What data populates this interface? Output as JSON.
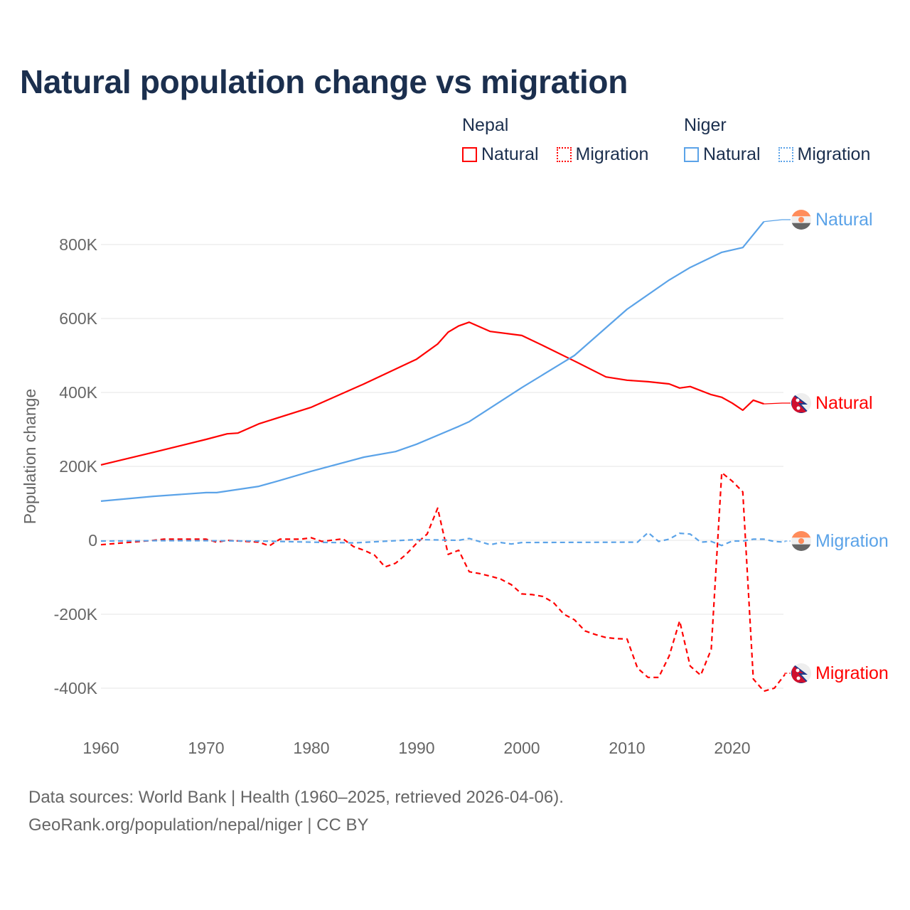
{
  "chart_data": {
    "type": "line",
    "title": "Natural population change vs migration",
    "xlabel": "",
    "ylabel": "Population change",
    "xlim": [
      1960,
      2025
    ],
    "ylim": [
      -500000,
      900000
    ],
    "x_ticks": [
      1960,
      1970,
      1980,
      1990,
      2000,
      2010,
      2020
    ],
    "x_tick_labels": [
      "1960",
      "1970",
      "1980",
      "1990",
      "2000",
      "2010",
      "2020"
    ],
    "y_ticks": [
      -400000,
      -200000,
      0,
      200000,
      400000,
      600000,
      800000
    ],
    "y_tick_labels": [
      "-400K",
      "-200K",
      "0",
      "200K",
      "400K",
      "600K",
      "800K"
    ],
    "grid": true,
    "legend_position": "top-right",
    "legend": {
      "groups": [
        {
          "name": "Nepal",
          "items": [
            "Natural",
            "Migration"
          ]
        },
        {
          "name": "Niger",
          "items": [
            "Natural",
            "Migration"
          ]
        }
      ]
    },
    "series": [
      {
        "name": "Nepal Natural",
        "country": "Nepal",
        "kind": "Natural",
        "color": "#ff0000",
        "dash": "solid",
        "end_label": "Natural",
        "x": [
          1960,
          1965,
          1970,
          1972,
          1973,
          1975,
          1980,
          1985,
          1990,
          1992,
          1993,
          1994,
          1995,
          1997,
          2000,
          2002,
          2005,
          2008,
          2010,
          2012,
          2014,
          2015,
          2016,
          2018,
          2019,
          2020,
          2021,
          2022,
          2023
        ],
        "y": [
          204000,
          238000,
          273000,
          288000,
          290000,
          315000,
          360000,
          423000,
          490000,
          531000,
          563000,
          580000,
          590000,
          565000,
          554000,
          527000,
          485000,
          442000,
          433000,
          429000,
          423000,
          412000,
          416000,
          394000,
          387000,
          371000,
          352000,
          379000,
          369000
        ]
      },
      {
        "name": "Nepal Migration",
        "country": "Nepal",
        "kind": "Migration",
        "color": "#ff0000",
        "dash": "dashed",
        "end_label": "Migration",
        "x": [
          1960,
          1965,
          1966,
          1970,
          1971,
          1972,
          1975,
          1976,
          1977,
          1979,
          1980,
          1981,
          1983,
          1984,
          1985,
          1986,
          1987,
          1988,
          1989,
          1990,
          1991,
          1992,
          1993,
          1994,
          1995,
          1996,
          1997,
          1998,
          1999,
          2000,
          2001,
          2002,
          2003,
          2004,
          2005,
          2006,
          2007,
          2008,
          2009,
          2010,
          2011,
          2012,
          2013,
          2014,
          2015,
          2016,
          2017,
          2018,
          2019,
          2020,
          2021,
          2022,
          2023,
          2024,
          2025
        ],
        "y": [
          -12000,
          0,
          3000,
          3000,
          -5000,
          0,
          -5000,
          -15000,
          3000,
          3000,
          7000,
          -3000,
          4000,
          -17000,
          -27000,
          -40000,
          -72000,
          -62000,
          -38000,
          -8000,
          17000,
          87000,
          -38000,
          -27000,
          -85000,
          -90000,
          -97000,
          -105000,
          -120000,
          -145000,
          -147000,
          -152000,
          -168000,
          -200000,
          -215000,
          -245000,
          -255000,
          -263000,
          -266000,
          -267000,
          -346000,
          -371000,
          -371000,
          -313000,
          -218000,
          -340000,
          -365000,
          -295000,
          183000,
          160000,
          131000,
          -375000,
          -408000,
          -400000,
          -363000
        ]
      },
      {
        "name": "Niger Natural",
        "country": "Niger",
        "kind": "Natural",
        "color": "#5ba3e8",
        "dash": "solid",
        "end_label": "Natural",
        "x": [
          1960,
          1965,
          1970,
          1971,
          1975,
          1977,
          1980,
          1985,
          1988,
          1990,
          1994,
          1995,
          2000,
          2005,
          2010,
          2014,
          2016,
          2019,
          2021,
          2023
        ],
        "y": [
          106000,
          119000,
          129000,
          129000,
          146000,
          162000,
          187000,
          225000,
          240000,
          260000,
          308000,
          321000,
          413000,
          500000,
          625000,
          704000,
          738000,
          779000,
          792000,
          862000
        ]
      },
      {
        "name": "Niger Migration",
        "country": "Niger",
        "kind": "Migration",
        "color": "#5ba3e8",
        "dash": "dashed",
        "end_label": "Migration",
        "x": [
          1960,
          1965,
          1970,
          1975,
          1980,
          1984,
          1990,
          1994,
          1995,
          1997,
          1998,
          1999,
          2000,
          2011,
          2012,
          2013,
          2014,
          2015,
          2016,
          2017,
          2018,
          2019,
          2020,
          2021,
          2022,
          2023,
          2024,
          2025
        ],
        "y": [
          -2000,
          -1000,
          -1000,
          -2000,
          -5000,
          -7000,
          2000,
          0,
          5000,
          -12000,
          -6000,
          -10000,
          -6000,
          -5000,
          21000,
          -3000,
          3000,
          19000,
          17000,
          -5000,
          -3000,
          -14000,
          -2000,
          -2000,
          3000,
          3000,
          -3000,
          -5000
        ]
      }
    ]
  },
  "legend_ui": {
    "nepal": {
      "title": "Nepal",
      "natural": "Natural",
      "migration": "Migration"
    },
    "niger": {
      "title": "Niger",
      "natural": "Natural",
      "migration": "Migration"
    }
  },
  "footer": {
    "sources": "Data sources: World Bank | Health (1960–2025, retrieved 2026-04-06).",
    "credit": "GeoRank.org/population/nepal/niger | CC BY"
  }
}
